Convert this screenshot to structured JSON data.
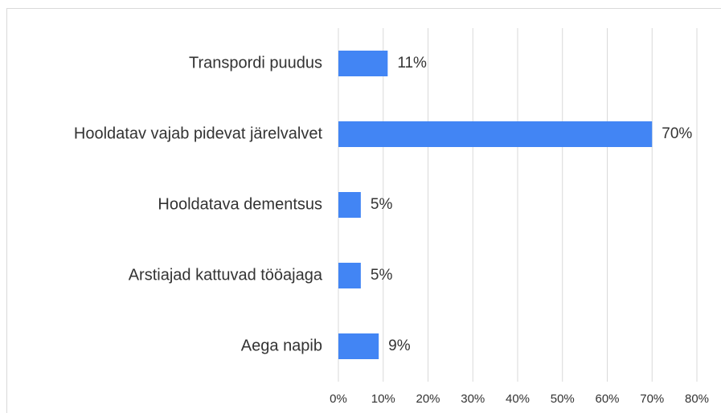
{
  "chart_data": {
    "type": "hbar",
    "categories": [
      "Transpordi puudus",
      "Hooldatav vajab pidevat järelvalvet",
      "Hooldatava dementsus",
      "Arstiajad kattuvad tööajaga",
      "Aega napib"
    ],
    "values": [
      11,
      70,
      5,
      5,
      9
    ],
    "value_labels": [
      "11%",
      "70%",
      "5%",
      "5%",
      "9%"
    ],
    "color": "#4285f4",
    "xlim": [
      0,
      80
    ],
    "xticks": [
      {
        "value": 0,
        "label": "0%"
      },
      {
        "value": 10,
        "label": "10%"
      },
      {
        "value": 20,
        "label": "20%"
      },
      {
        "value": 30,
        "label": "30%"
      },
      {
        "value": 40,
        "label": "40%"
      },
      {
        "value": 50,
        "label": "50%"
      },
      {
        "value": 60,
        "label": "60%"
      },
      {
        "value": 70,
        "label": "70%"
      },
      {
        "value": 80,
        "label": "80%"
      }
    ],
    "grid": true
  }
}
